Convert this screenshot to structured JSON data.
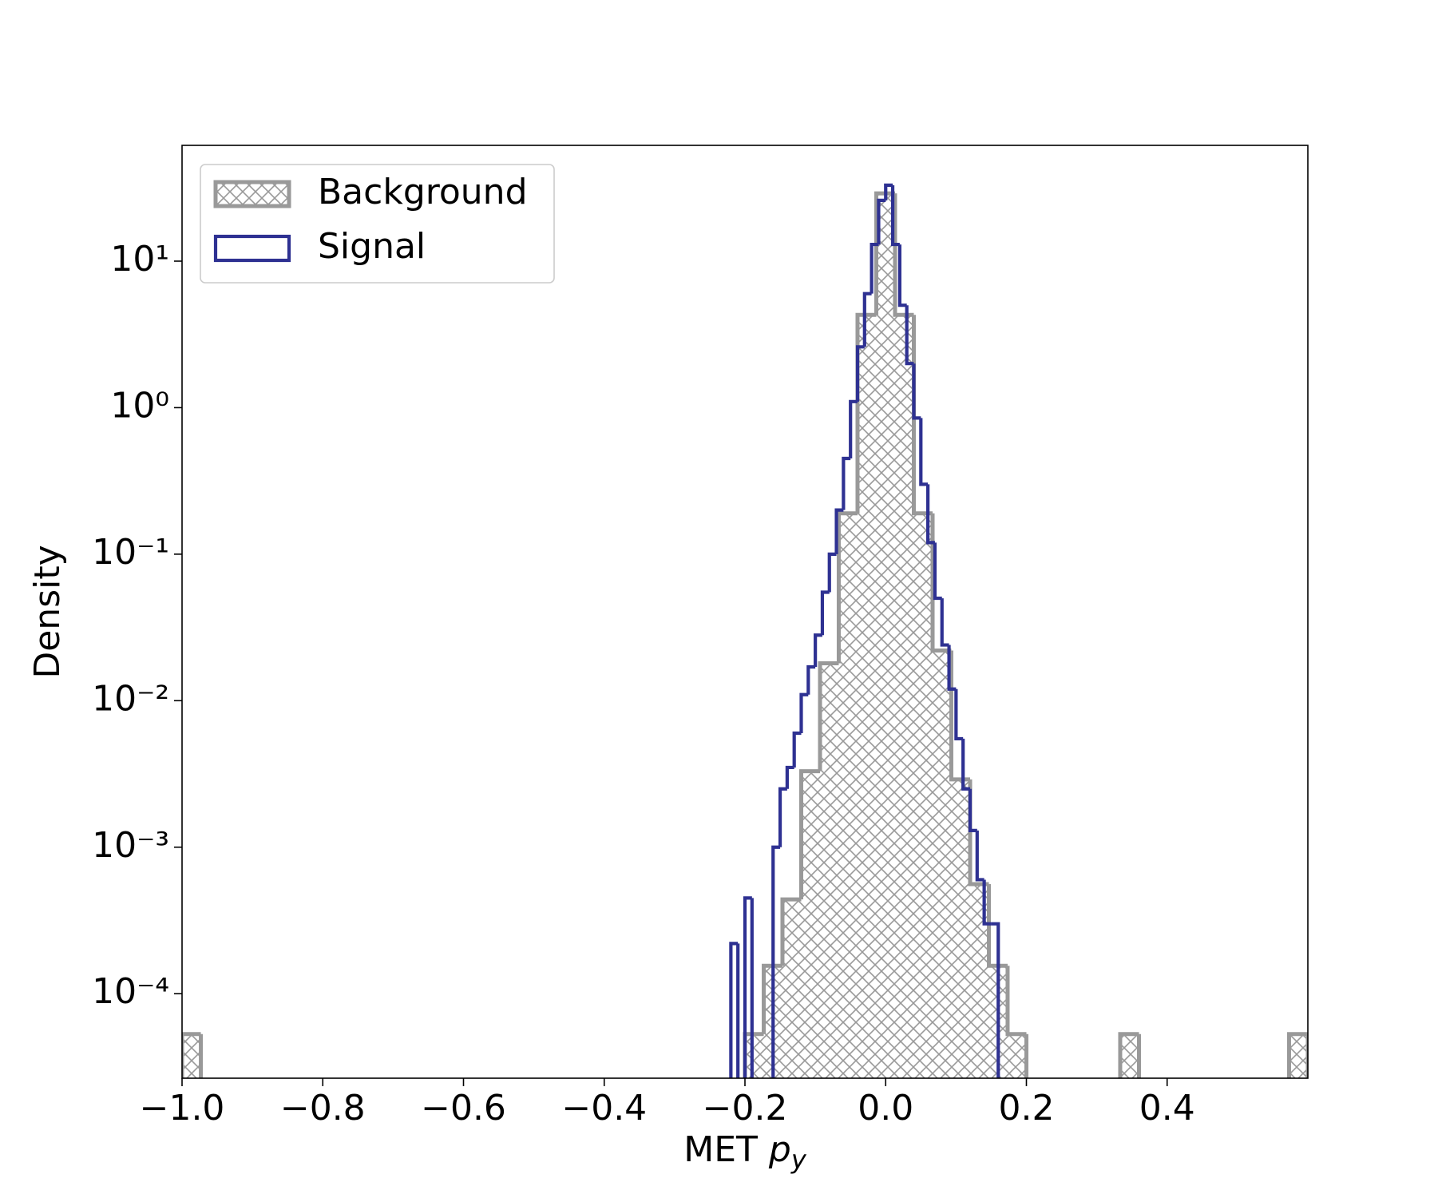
{
  "chart_data": {
    "type": "histogram",
    "xlabel": "MET p",
    "xlabel_sub": "y",
    "ylabel": "Density",
    "log_y": true,
    "legend_loc": "upper left",
    "xlim": [
      -1.0,
      0.6
    ],
    "ylim": [
      2.65e-05,
      61.7
    ],
    "xticks": [
      {
        "value": -1.0,
        "label": "−1.0"
      },
      {
        "value": -0.8,
        "label": "−0.8"
      },
      {
        "value": -0.6,
        "label": "−0.6"
      },
      {
        "value": -0.4,
        "label": "−0.4"
      },
      {
        "value": -0.2,
        "label": "−0.2"
      },
      {
        "value": 0,
        "label": "0.0"
      },
      0.2,
      0.4
    ],
    "yticks": [
      {
        "value": 0.0001,
        "label": "10⁻⁴"
      },
      {
        "value": 0.001,
        "label": "10⁻³"
      },
      {
        "value": 0.01,
        "label": "10⁻²"
      },
      {
        "value": 0.1,
        "label": "10⁻¹"
      },
      {
        "value": 1,
        "label": "10⁰"
      },
      {
        "value": 10,
        "label": "10¹"
      }
    ],
    "series": [
      {
        "name": "Background",
        "color": "#999999",
        "hatch": true,
        "bins": [
          -1.0,
          -0.9733,
          -0.9467,
          -0.92,
          -0.8933,
          -0.8667,
          -0.84,
          -0.8133,
          -0.7867,
          -0.76,
          -0.7333,
          -0.7067,
          -0.68,
          -0.6533,
          -0.6267,
          -0.6,
          -0.5733,
          -0.5467,
          -0.52,
          -0.4933,
          -0.4667,
          -0.44,
          -0.4133,
          -0.3867,
          -0.36,
          -0.3333,
          -0.3067,
          -0.28,
          -0.2533,
          -0.2267,
          -0.2,
          -0.1733,
          -0.1467,
          -0.12,
          -0.0933,
          -0.0667,
          -0.04,
          -0.0133,
          0.0133,
          0.04,
          0.0667,
          0.0933,
          0.12,
          0.1467,
          0.1733,
          0.2,
          0.2267,
          0.2533,
          0.28,
          0.3067,
          0.3333,
          0.36,
          0.3867,
          0.4133,
          0.44,
          0.4667,
          0.4933,
          0.52,
          0.5467,
          0.5733,
          0.6
        ],
        "values": [
          5.3e-05,
          0,
          0,
          0,
          0,
          0,
          0,
          0,
          0,
          0,
          0,
          0,
          0,
          0,
          0,
          0,
          0,
          0,
          0,
          0,
          0,
          0,
          0,
          0,
          0,
          0,
          0,
          0,
          0,
          0,
          5.3e-05,
          0.000155,
          0.00044,
          0.0033,
          0.018,
          0.19,
          4.3,
          29,
          4.3,
          0.19,
          0.022,
          0.0029,
          0.00056,
          0.000155,
          5.3e-05,
          0,
          0,
          0,
          0,
          0,
          5.3e-05,
          0,
          0,
          0,
          0,
          0,
          0,
          0,
          0,
          5.3e-05
        ]
      },
      {
        "name": "Signal",
        "color": "#2e3192",
        "hatch": false,
        "bins": [
          -0.22,
          -0.21,
          -0.2,
          -0.19,
          -0.18,
          -0.17,
          -0.16,
          -0.15,
          -0.14,
          -0.13,
          -0.12,
          -0.11,
          -0.1,
          -0.09,
          -0.08,
          -0.07,
          -0.06,
          -0.05,
          -0.04,
          -0.03,
          -0.02,
          -0.01,
          0,
          0.01,
          0.02,
          0.03,
          0.04,
          0.05,
          0.06,
          0.07,
          0.08,
          0.09,
          0.1,
          0.11,
          0.12,
          0.13,
          0.14,
          0.15,
          0.16
        ],
        "values": [
          0.00022,
          0,
          0.00045,
          0,
          0,
          0,
          0.001,
          0.0025,
          0.0035,
          0.006,
          0.011,
          0.017,
          0.028,
          0.055,
          0.1,
          0.2,
          0.45,
          1.1,
          2.6,
          6,
          13,
          26,
          33,
          13,
          5,
          2,
          0.85,
          0.3,
          0.12,
          0.05,
          0.024,
          0.012,
          0.0055,
          0.0025,
          0.0013,
          0.0006,
          0.0003,
          0.0003
        ]
      }
    ]
  }
}
